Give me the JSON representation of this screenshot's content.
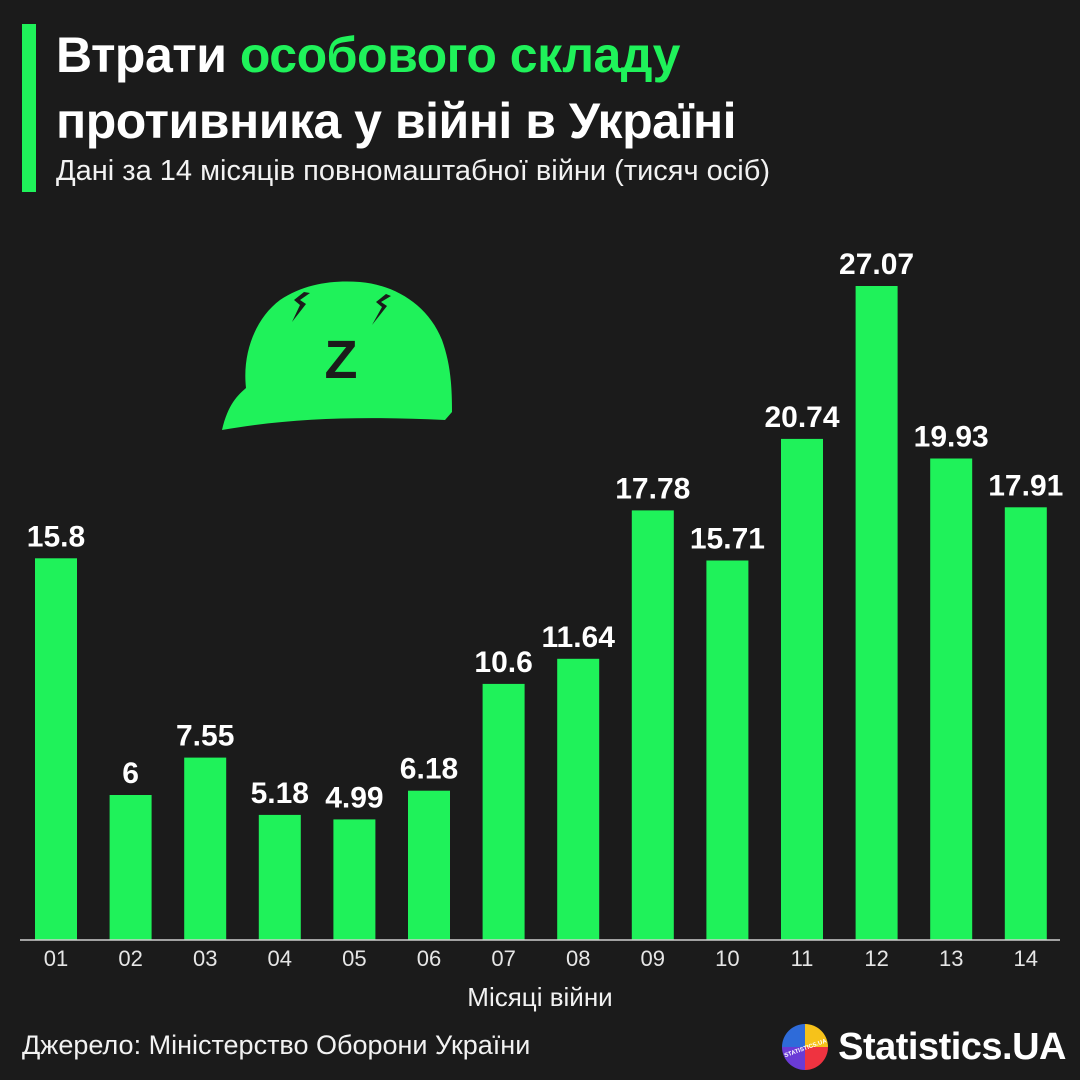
{
  "header": {
    "title_part1": "Втрати ",
    "title_highlight": "особового складу",
    "title_line2": "противника у війні в Україні",
    "subtitle": "Дані за 14 місяців повномаштабної війни (тисяч осіб)"
  },
  "footer": {
    "source": "Джерело: Міністерство Оборони України",
    "brand": "Statistics.UA",
    "logo_text": "STATISTICS.UA"
  },
  "colors": {
    "background": "#1b1b1b",
    "accent": "#1ff25a",
    "text": "#ffffff"
  },
  "illustration": {
    "icon": "helmet-z-icon",
    "letter": "Z"
  },
  "chart_data": {
    "type": "bar",
    "categories": [
      "01",
      "02",
      "03",
      "04",
      "05",
      "06",
      "07",
      "08",
      "09",
      "10",
      "11",
      "12",
      "13",
      "14"
    ],
    "values": [
      15.8,
      6,
      7.55,
      5.18,
      4.99,
      6.18,
      10.6,
      11.64,
      17.78,
      15.71,
      20.74,
      27.07,
      19.93,
      17.91
    ],
    "value_labels": [
      "15.8",
      "6",
      "7.55",
      "5.18",
      "4.99",
      "6.18",
      "10.6",
      "11.64",
      "17.78",
      "15.71",
      "20.74",
      "27.07",
      "19.93",
      "17.91"
    ],
    "xlabel": "Місяці війни",
    "ylabel": "",
    "ylim": [
      0,
      27.07
    ],
    "grid": false,
    "legend": "none"
  }
}
